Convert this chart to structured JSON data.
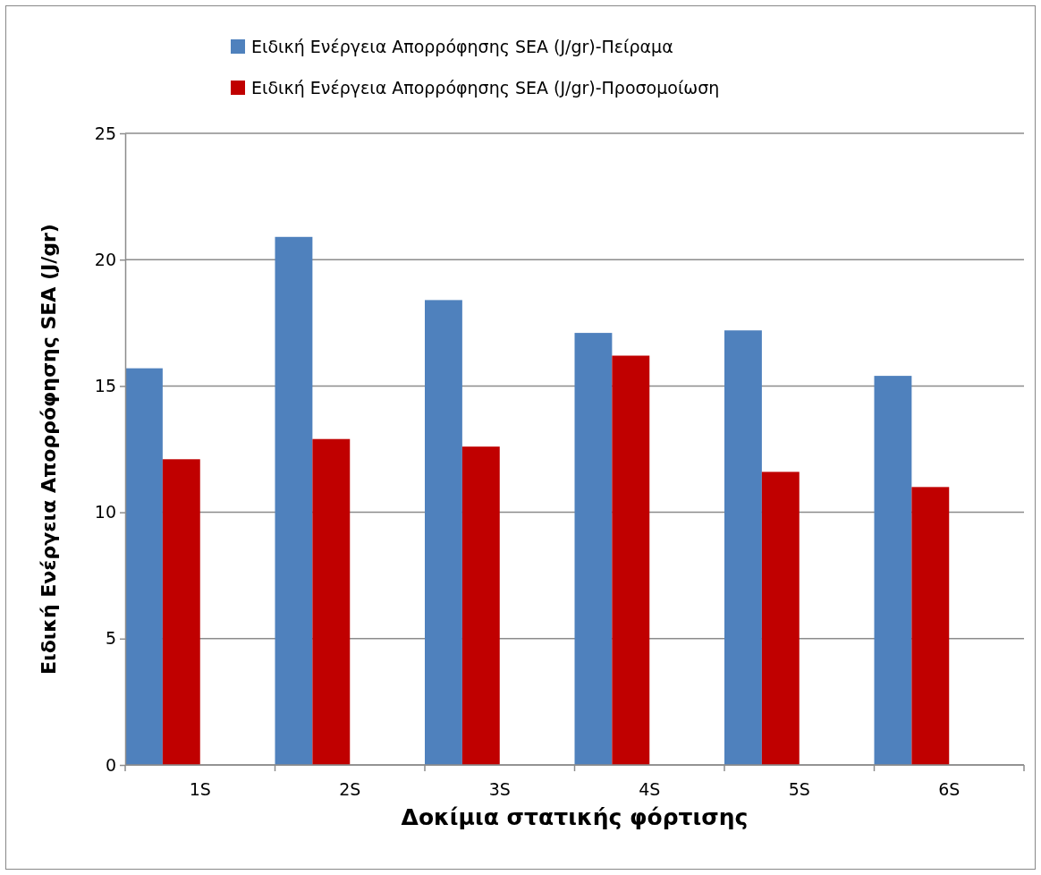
{
  "chart_data": {
    "type": "bar",
    "xlabel": "Δοκίμια στατικής φόρτισης",
    "ylabel": "Ειδική Ενέργεια Απορρόφησης SEA (J/gr)",
    "categories": [
      "1S",
      "2S",
      "3S",
      "4S",
      "5S",
      "6S"
    ],
    "series": [
      {
        "name": "Ειδική Ενέργεια Απορρόφησης SEA (J/gr)-Πείραμα",
        "color": "#4f81bd",
        "values": [
          15.7,
          20.9,
          18.4,
          17.1,
          17.2,
          15.4
        ]
      },
      {
        "name": "Ειδική Ενέργεια Απορρόφησης SEA (J/gr)-Προσομοίωση",
        "color": "#c00000",
        "values": [
          12.1,
          12.9,
          12.6,
          16.2,
          11.6,
          11.0
        ]
      }
    ],
    "ylim": [
      0,
      25
    ],
    "yticks": [
      0,
      5,
      10,
      15,
      20,
      25
    ],
    "grid": "y",
    "legend": "top"
  }
}
